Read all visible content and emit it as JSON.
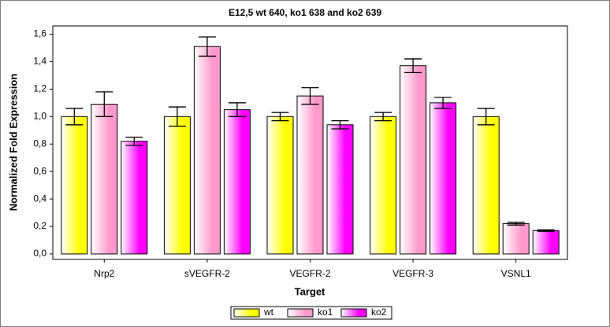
{
  "chart_data": {
    "type": "bar",
    "title": "E12,5 wt 640, ko1 638 and ko2 639",
    "x_label": "Target",
    "y_label": "Normalized Fold Expression",
    "categories": [
      "Nrp2",
      "sVEGFR-2",
      "VEGFR-2",
      "VEGFR-3",
      "VSNL1"
    ],
    "series": [
      {
        "name": "wt",
        "color": "#ffff00",
        "values": [
          1.0,
          1.0,
          1.0,
          1.0,
          1.0
        ],
        "errors": [
          0.06,
          0.07,
          0.03,
          0.03,
          0.06
        ]
      },
      {
        "name": "ko1",
        "color": "#ff99cc",
        "values": [
          1.09,
          1.51,
          1.15,
          1.37,
          0.22
        ],
        "errors": [
          0.09,
          0.07,
          0.06,
          0.05,
          0.01
        ]
      },
      {
        "name": "ko2",
        "color": "#ff00ff",
        "values": [
          0.82,
          1.05,
          0.94,
          1.1,
          0.17
        ],
        "errors": [
          0.03,
          0.05,
          0.03,
          0.04,
          0.005
        ]
      }
    ],
    "ylim": [
      -0.04,
      1.66
    ],
    "yticks": [
      {
        "value": 0,
        "label": "0,0"
      },
      {
        "value": 0.2,
        "label": "0,2"
      },
      {
        "value": 0.4,
        "label": "0,4"
      },
      {
        "value": 0.6,
        "label": "0,6"
      },
      {
        "value": 0.8,
        "label": "0,8"
      },
      {
        "value": 1.0,
        "label": "1,0"
      },
      {
        "value": 1.2,
        "label": "1,2"
      },
      {
        "value": 1.4,
        "label": "1,4"
      },
      {
        "value": 1.6,
        "label": "1,6"
      }
    ],
    "legend_position": "bottom"
  }
}
